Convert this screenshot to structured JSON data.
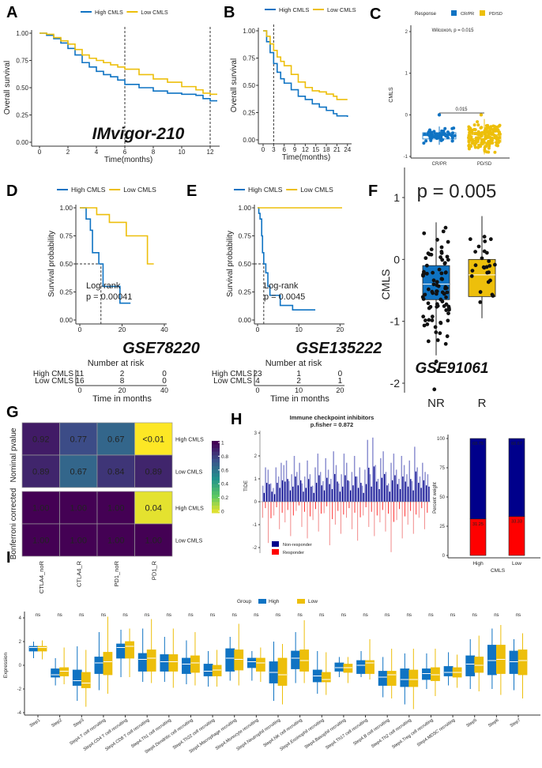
{
  "panel_labels": {
    "A": "A",
    "B": "B",
    "C": "C",
    "D": "D",
    "E": "E",
    "F": "F",
    "G": "G",
    "H": "H",
    "I": "I"
  },
  "colors": {
    "high": "#0F73C3",
    "low": "#EDBF0B",
    "non_responder": "#00008B",
    "responder": "#FF0000"
  },
  "chart_data": [
    {
      "panel": "A",
      "type": "line",
      "legend": [
        "High CMLS",
        "Low CMLS"
      ],
      "xlabel": "Time(months)",
      "ylabel": "Overall survival",
      "annotation": "IMvigor-210",
      "xticks": [
        0,
        2,
        4,
        6,
        8,
        10,
        12
      ],
      "yticks": [
        "0.00",
        "0.25",
        "0.50",
        "0.75",
        "1.00"
      ],
      "xlim": [
        0,
        12.5
      ],
      "ylim": [
        0,
        1
      ],
      "vlines": [
        6,
        12
      ],
      "series": [
        {
          "name": "High CMLS",
          "x": [
            0,
            0.5,
            1,
            1.5,
            2,
            2.5,
            3,
            3.5,
            4,
            4.5,
            5,
            5.5,
            6,
            7,
            8,
            9,
            10,
            11,
            11.5,
            12,
            12.5
          ],
          "y": [
            1,
            0.98,
            0.95,
            0.91,
            0.86,
            0.8,
            0.73,
            0.69,
            0.65,
            0.62,
            0.6,
            0.57,
            0.53,
            0.5,
            0.47,
            0.45,
            0.44,
            0.43,
            0.4,
            0.38,
            0.38
          ]
        },
        {
          "name": "Low CMLS",
          "x": [
            0,
            0.5,
            1,
            1.5,
            2,
            2.5,
            3,
            3.5,
            4,
            4.5,
            5,
            5.5,
            6,
            7,
            8,
            9,
            10,
            11,
            11.5,
            12,
            12.5
          ],
          "y": [
            1,
            0.99,
            0.96,
            0.93,
            0.9,
            0.85,
            0.8,
            0.77,
            0.75,
            0.73,
            0.71,
            0.69,
            0.67,
            0.62,
            0.58,
            0.55,
            0.51,
            0.48,
            0.45,
            0.44,
            0.44
          ]
        }
      ]
    },
    {
      "panel": "B",
      "type": "line",
      "legend": [
        "High CMLS",
        "Low CMLS"
      ],
      "xlabel": "Time(months)",
      "ylabel": "Overall survival",
      "xticks": [
        0,
        3,
        6,
        9,
        12,
        15,
        18,
        21,
        24
      ],
      "yticks": [
        "0.00",
        "0.25",
        "0.50",
        "0.75",
        "1.00"
      ],
      "xlim": [
        0,
        24.5
      ],
      "ylim": [
        0,
        1
      ],
      "vlines": [
        3
      ],
      "series": [
        {
          "name": "High CMLS",
          "x": [
            0,
            1,
            2,
            3,
            4,
            5,
            6,
            8,
            10,
            12,
            14,
            16,
            18,
            20,
            21,
            24
          ],
          "y": [
            1,
            0.9,
            0.8,
            0.7,
            0.62,
            0.56,
            0.52,
            0.46,
            0.4,
            0.37,
            0.33,
            0.3,
            0.27,
            0.24,
            0.22,
            0.21
          ]
        },
        {
          "name": "Low CMLS",
          "x": [
            0,
            1,
            2,
            3,
            4,
            5,
            6,
            8,
            10,
            12,
            14,
            16,
            18,
            20,
            21,
            24
          ],
          "y": [
            1,
            0.95,
            0.88,
            0.82,
            0.76,
            0.72,
            0.68,
            0.6,
            0.53,
            0.48,
            0.45,
            0.44,
            0.42,
            0.4,
            0.37,
            0.37
          ]
        }
      ]
    },
    {
      "panel": "C",
      "type": "box",
      "legend_title": "Response",
      "legend": [
        "CR/PR",
        "PD/SD"
      ],
      "ylabel": "CMLS",
      "categories": [
        "CR/PR",
        "PD/SD"
      ],
      "yticks": [
        -1,
        0,
        1,
        2
      ],
      "ylim": [
        -1,
        2.1
      ],
      "stat_label": "Wilcoxon, p = 0.015",
      "bracket_label": "0.015",
      "boxes": [
        {
          "min": -0.72,
          "q1": -0.58,
          "median": -0.5,
          "q3": -0.43,
          "max": -0.28,
          "outliers": [
            0
          ]
        },
        {
          "min": -0.95,
          "q1": -0.66,
          "median": -0.57,
          "q3": -0.48,
          "max": -0.1,
          "outliers": [
            0
          ]
        }
      ]
    },
    {
      "panel": "D",
      "type": "line",
      "legend": [
        "High CMLS",
        "Low CMLS"
      ],
      "ylabel": "Survival probability",
      "annotation": "GSE78220",
      "stat_label": [
        "Log-rank",
        "p = 0.00041"
      ],
      "xticks": [
        0,
        20,
        40
      ],
      "yticks": [
        "0.00",
        "0.25",
        "0.50",
        "0.75",
        "1.00"
      ],
      "xlim": [
        0,
        40
      ],
      "ylim": [
        0,
        1
      ],
      "median_time": 10,
      "series": [
        {
          "name": "High CMLS",
          "x": [
            0,
            3,
            5,
            6,
            9,
            11,
            19,
            24
          ],
          "y": [
            1,
            0.9,
            0.8,
            0.6,
            0.5,
            0.3,
            0.15,
            0.15
          ]
        },
        {
          "name": "Low CMLS",
          "x": [
            0,
            8,
            14,
            22,
            32,
            35
          ],
          "y": [
            1,
            0.94,
            0.87,
            0.75,
            0.5,
            0.5
          ]
        }
      ],
      "risk_table": {
        "title": "Number at risk",
        "xlabel": "Time in months",
        "times": [
          0,
          20,
          40
        ],
        "rows": [
          {
            "label": "High CMLS",
            "values": [
              11,
              2,
              0
            ]
          },
          {
            "label": "Low CMLS",
            "values": [
              16,
              8,
              0
            ]
          }
        ]
      }
    },
    {
      "panel": "E",
      "type": "line",
      "legend": [
        "High CMLS",
        "Low CMLS"
      ],
      "ylabel": "Survival probability",
      "annotation": "GSE135222",
      "stat_label": [
        "Log-rank",
        "p = 0.0045"
      ],
      "xticks": [
        0,
        10,
        20
      ],
      "yticks": [
        "0.00",
        "0.25",
        "0.50",
        "0.75",
        "1.00"
      ],
      "xlim": [
        0,
        20.5
      ],
      "ylim": [
        0,
        1
      ],
      "median_time": 1.5,
      "series": [
        {
          "name": "High CMLS",
          "x": [
            0,
            0.3,
            0.6,
            1,
            1.2,
            1.5,
            2,
            2.5,
            3,
            5.5,
            8.5,
            14
          ],
          "y": [
            1,
            0.95,
            0.9,
            0.75,
            0.6,
            0.5,
            0.42,
            0.3,
            0.22,
            0.13,
            0.09,
            0.09
          ]
        },
        {
          "name": "Low CMLS",
          "x": [
            0,
            20.5
          ],
          "y": [
            1,
            1
          ]
        }
      ],
      "risk_table": {
        "title": "Number at risk",
        "xlabel": "Time in months",
        "times": [
          0,
          10,
          20
        ],
        "rows": [
          {
            "label": "High CMLS",
            "values": [
              23,
              1,
              0
            ]
          },
          {
            "label": "Low CMLS",
            "values": [
              4,
              2,
              1
            ]
          }
        ]
      }
    },
    {
      "panel": "F",
      "type": "box",
      "ylabel": "CMLS",
      "categories": [
        "NR",
        "R"
      ],
      "yticks": [
        -2,
        -1,
        0,
        1
      ],
      "ylim": [
        -2.15,
        1.1
      ],
      "stat_label": "p = 0.005",
      "annotation": "GSE91061",
      "boxes": [
        {
          "min": -1.55,
          "q1": -0.65,
          "median": -0.4,
          "q3": -0.1,
          "max": 0.6,
          "outliers": [
            -1.65,
            -1.8,
            -2.1
          ]
        },
        {
          "min": -0.95,
          "q1": -0.6,
          "median": -0.25,
          "q3": 0,
          "max": 0.7,
          "outliers": []
        }
      ]
    },
    {
      "panel": "G",
      "type": "heatmap",
      "columns": [
        "CTLA4_noR",
        "CTLA4_R",
        "PD1_noR",
        "PD1_R"
      ],
      "row_groups": [
        {
          "label": "Nominal pvalue",
          "rows": [
            {
              "label": "High CMLS",
              "values": [
                0.92,
                0.77,
                0.67,
                0.0
              ],
              "text": [
                "0.92",
                "0.77",
                "0.67",
                "<0.01"
              ]
            },
            {
              "label": "Low CMLS",
              "values": [
                0.89,
                0.67,
                0.84,
                0.89
              ],
              "text": [
                "0.89",
                "0.67",
                "0.84",
                "0.89"
              ]
            }
          ]
        },
        {
          "label": "Bonferroni corrected",
          "rows": [
            {
              "label": "High CMLS",
              "values": [
                1,
                1,
                1,
                0.04
              ],
              "text": [
                "1.00",
                "1.00",
                "1.00",
                "0.04"
              ]
            },
            {
              "label": "Low CMLS",
              "values": [
                1,
                1,
                1,
                1
              ],
              "text": [
                "1.00",
                "1.00",
                "1.00",
                "1.00"
              ]
            }
          ]
        }
      ],
      "colorbar": {
        "ticks": [
          "0",
          "0.2",
          "0.4",
          "0.6",
          "0.8",
          "1"
        ],
        "range": [
          0,
          1
        ],
        "palette": "viridis-reversed"
      }
    },
    {
      "panel": "H",
      "type": "bar",
      "title": "Immune checkpoint inhibitors",
      "subtitle": "p.fisher = 0.872",
      "ylabel": "TIDE",
      "yticks": [
        -2,
        -1,
        0,
        1,
        2,
        3
      ],
      "ylim": [
        -2.3,
        3
      ],
      "legend": [
        "Non-responder",
        "Responder"
      ],
      "non_responder_values": [
        0.7,
        1.5,
        1.4,
        0.8,
        0.6,
        1.5,
        1.1,
        1.7,
        1.6,
        1.8,
        0.9,
        1.2,
        2.0,
        1.3,
        1.7,
        0.8,
        1.1,
        1.8,
        1.2,
        0.7,
        1.5,
        2.1,
        1.3,
        0.9,
        1.9,
        1.4,
        1.0,
        2.2,
        1.6,
        0.8,
        1.2,
        2.1,
        1.7,
        0.9,
        1.3,
        2.0,
        1.1,
        1.5,
        0.7,
        1.4,
        2.7,
        1.2,
        2.8,
        1.6,
        1.0,
        1.9,
        2.2,
        1.3,
        0.8,
        1.7,
        2.1,
        1.4,
        1.0,
        2.0,
        1.6,
        1.2,
        1.8,
        0.9,
        2.4,
        1.5,
        1.1,
        1.7,
        1.3,
        1.2
      ],
      "responder_values": [
        -0.7,
        -1.8,
        -0.6,
        -1.2,
        -0.9,
        -1.5,
        -0.4,
        -1.1,
        -1.6,
        -0.8,
        -1.3,
        -0.5,
        -1.9,
        -1.0,
        -1.4,
        -0.7,
        -1.2,
        -1.7,
        -0.6,
        -1.1,
        -1.5,
        -0.9,
        -1.3,
        -2.2,
        -0.8,
        -1.6,
        -1.0,
        -1.4,
        -0.7,
        -1.2
      ]
    },
    {
      "panel": "H2",
      "type": "stacked-bar",
      "xlabel": "CMLS",
      "ylabel": "Percent weight",
      "categories": [
        "High",
        "Low"
      ],
      "yticks": [
        0,
        25,
        50,
        75,
        100
      ],
      "ylim": [
        0,
        100
      ],
      "series": [
        {
          "name": "Non-responder",
          "values": [
            68.75,
            66.67
          ],
          "labels": [
            "68.75",
            "66.67"
          ]
        },
        {
          "name": "Responder",
          "values": [
            31.25,
            33.33
          ],
          "labels": [
            "31.25",
            "33.33"
          ]
        }
      ]
    },
    {
      "panel": "I",
      "type": "box",
      "legend_title": "Group",
      "legend": [
        "High",
        "Low"
      ],
      "ylabel": "Expression",
      "yticks": [
        -4,
        -2,
        0,
        2,
        4
      ],
      "ylim": [
        -4.2,
        4.4
      ],
      "significance": "ns",
      "categories": [
        "Step1",
        "Step2",
        "Step3",
        "Step4.T cell recruiting",
        "Step4.CD4 T cell recruiting",
        "Step4.CD8 T cell recruiting",
        "Step4.Th1 cell recruiting",
        "Step4.Dendritic cell recruiting",
        "Step4.Th22 cell recruiting",
        "Step4.Macrophage recruiting",
        "Step4.Monocyte recruiting",
        "Step4.Neutrophil recruiting",
        "Step4.NK cell recruiting",
        "Step4.Eosinophil recruiting",
        "Step4.Basophil recruiting",
        "Step4.Th17 cell recruiting",
        "Step4.B cell recruiting",
        "Step4.Th2 cell recruiting",
        "Step4.Treg cell recruiting",
        "Step4.MDSC recruiting",
        "Step5",
        "Step6",
        "Step7"
      ],
      "high": [
        [
          0.6,
          1.2,
          1.5,
          1.6,
          2
        ],
        [
          -1.7,
          -1,
          -0.8,
          -0.3,
          0.6
        ],
        [
          -3,
          -1.7,
          -1.3,
          -0.4,
          1.6
        ],
        [
          -2.1,
          -0.7,
          0.2,
          0.7,
          2.8
        ],
        [
          -1,
          0.6,
          1.5,
          1.8,
          3
        ],
        [
          -1.4,
          -0.5,
          0.5,
          1,
          3.1
        ],
        [
          -1.4,
          -0.5,
          0.3,
          0.9,
          2.4
        ],
        [
          -1.6,
          -0.7,
          0.1,
          0.6,
          2.1
        ],
        [
          -1.8,
          -0.9,
          -0.5,
          0.1,
          1.2
        ],
        [
          -1.3,
          -0.5,
          0.6,
          1.4,
          2.4
        ],
        [
          -1.3,
          -0.2,
          0.3,
          0.6,
          1.2
        ],
        [
          -3,
          -1.5,
          -0.6,
          0.3,
          2
        ],
        [
          -1.5,
          -0.3,
          0.6,
          1.2,
          2.8
        ],
        [
          -2.4,
          -1.4,
          -0.9,
          -0.4,
          1.2
        ],
        [
          -1,
          -0.5,
          -0.2,
          0.2,
          0.7
        ],
        [
          -1,
          -0.7,
          0,
          0.4,
          1.2
        ],
        [
          -2.7,
          -1.7,
          -1,
          -0.5,
          0.7
        ],
        [
          -3.3,
          -1.8,
          -1.2,
          -0.3,
          1
        ],
        [
          -2,
          -1.2,
          -0.7,
          -0.3,
          1
        ],
        [
          -1.7,
          -0.9,
          -0.6,
          -0.1,
          1.1
        ],
        [
          -2,
          -0.9,
          0.1,
          0.8,
          2.2
        ],
        [
          -2,
          -0.8,
          0.4,
          1.7,
          3.1
        ],
        [
          -2.1,
          -0.7,
          0.3,
          1.2,
          2.2
        ]
      ],
      "low": [
        [
          0.5,
          1.2,
          1.5,
          1.6,
          2.1
        ],
        [
          -1.6,
          -0.9,
          -0.5,
          -0.2,
          1.5
        ],
        [
          -3.5,
          -1.9,
          -1.5,
          -0.6,
          1.3
        ],
        [
          -2.4,
          -0.8,
          0.3,
          1.1,
          4.1
        ],
        [
          -1,
          0.6,
          1.6,
          2,
          3.1
        ],
        [
          -1.5,
          -0.5,
          0.6,
          1.3,
          3.9
        ],
        [
          -1.9,
          -0.5,
          0.3,
          0.9,
          3.1
        ],
        [
          -1.7,
          -0.6,
          0.2,
          0.8,
          2.8
        ],
        [
          -1.8,
          -0.9,
          -0.4,
          0,
          1.3
        ],
        [
          -1.7,
          -0.4,
          0.5,
          1.3,
          3.5
        ],
        [
          -1.4,
          -0.5,
          0.2,
          0.6,
          1.5
        ],
        [
          -3.3,
          -1.7,
          -0.8,
          0.6,
          1.8
        ],
        [
          -1.5,
          -0.5,
          0.4,
          1.3,
          3.8
        ],
        [
          -2.5,
          -1.4,
          -1.2,
          -0.6,
          1.1
        ],
        [
          -1.5,
          -0.6,
          -0.2,
          0.1,
          0.7
        ],
        [
          -1.2,
          -0.7,
          0.2,
          0.4,
          2.2
        ],
        [
          -2.8,
          -1.7,
          -0.8,
          -0.5,
          1.4
        ],
        [
          -3.7,
          -1.8,
          -1.2,
          -0.4,
          1.4
        ],
        [
          -2.6,
          -1.3,
          -0.8,
          -0.2,
          1.4
        ],
        [
          -1.9,
          -1,
          -0.6,
          -0.2,
          0.9
        ],
        [
          -2.2,
          -0.6,
          0,
          0.7,
          2.5
        ],
        [
          -2.5,
          -0.7,
          0.5,
          1.7,
          3.4
        ],
        [
          -2.8,
          -0.8,
          0.4,
          1.3,
          2.7
        ]
      ]
    }
  ]
}
